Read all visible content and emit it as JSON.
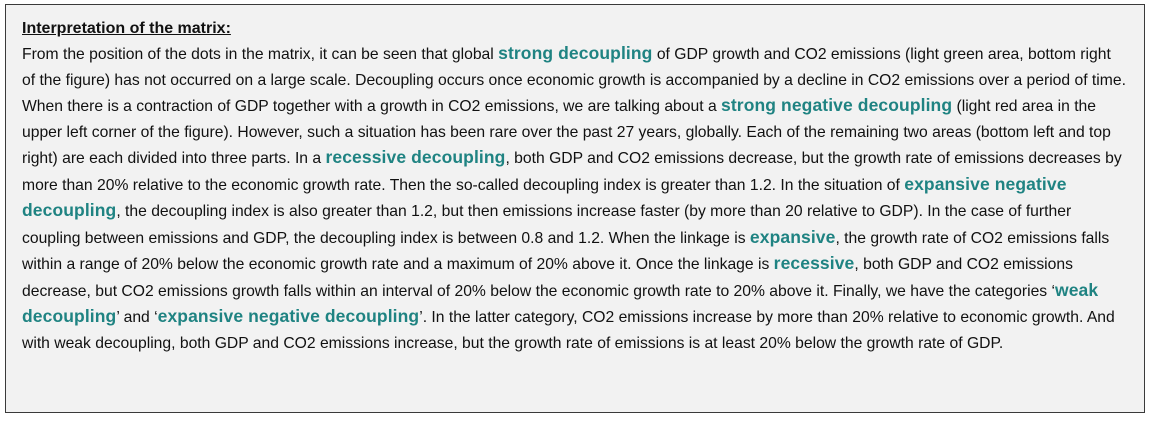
{
  "heading": "Interpretation of the matrix:",
  "segments": [
    {
      "text": "From the position of the dots in the matrix, it can be seen that global ",
      "term": false
    },
    {
      "text": "strong decoupling",
      "term": true
    },
    {
      "text": " of GDP growth and CO2 emissions (light green area, bottom right of the figure) has not occurred on a large scale. Decoupling occurs once economic growth is accompanied by a decline in CO2 emissions over a period of time. When there is a contraction of GDP together with a growth in CO2 emissions, we are talking about a ",
      "term": false
    },
    {
      "text": "strong negative decoupling",
      "term": true
    },
    {
      "text": " (light red area in the upper left corner of the figure). However, such a situation has been rare over the past 27 years, globally. Each of the remaining two areas (bottom left and top right) are each divided into three parts. In a ",
      "term": false
    },
    {
      "text": "recessive decoupling",
      "term": true
    },
    {
      "text": ", both GDP and CO2 emissions decrease, but the growth rate of emissions decreases by more than 20% relative to the economic growth rate. Then the so-called decoupling index is greater than 1.2. In the situation of ",
      "term": false
    },
    {
      "text": "expansive negative decoupling",
      "term": true
    },
    {
      "text": ", the decoupling index is also greater than 1.2, but then emissions increase faster (by more than 20 relative to GDP). In the case of further coupling between emissions and GDP, the decoupling index is between 0.8 and 1.2. When the linkage is ",
      "term": false
    },
    {
      "text": "expansive",
      "term": true
    },
    {
      "text": ", the growth rate of CO2 emissions falls within a range of 20% below the economic growth rate and a maximum of 20% above it. Once the linkage is ",
      "term": false
    },
    {
      "text": "recessive",
      "term": true
    },
    {
      "text": ", both GDP and CO2 emissions decrease, but CO2 emissions growth falls within an interval of 20% below the economic growth rate to 20% above it. Finally, we have the categories ‘",
      "term": false
    },
    {
      "text": "weak decoupling",
      "term": true
    },
    {
      "text": "’ and ‘",
      "term": false
    },
    {
      "text": "expansive negative decoupling",
      "term": true
    },
    {
      "text": "’. In the latter category, CO2 emissions increase by more than 20% relative to economic growth. And with weak decoupling, both GDP and CO2 emissions increase, but the growth rate of emissions is at least 20% below the growth rate of GDP.",
      "term": false
    }
  ],
  "colors": {
    "term": "#1f8382",
    "background": "#f2f2f2",
    "border": "#3a3a3a"
  }
}
